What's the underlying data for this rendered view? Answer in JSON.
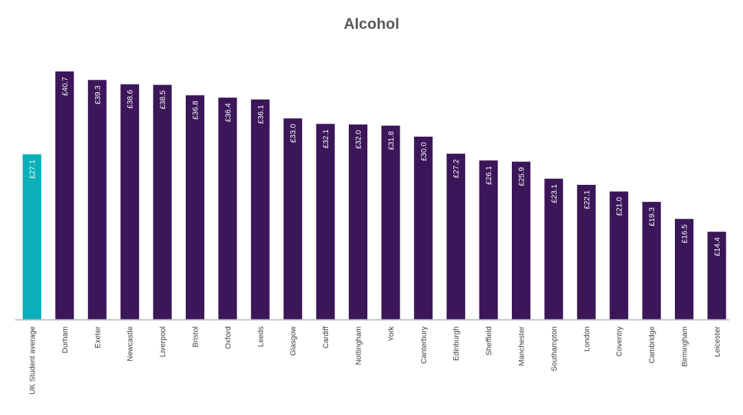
{
  "chart_data": {
    "type": "bar",
    "title": "Alcohol",
    "xlabel": "",
    "ylabel": "",
    "ylim": [
      0,
      45
    ],
    "grid": false,
    "legend": "none",
    "categories": [
      "UK Student average",
      "Durham",
      "Exeter",
      "Newcastle",
      "Liverpool",
      "Bristol",
      "Oxford",
      "Leeds",
      "Glasgow",
      "Cardiff",
      "Nottingham",
      "York",
      "Canterbury",
      "Edinburgh",
      "Sheffield",
      "Manchester",
      "Southampton",
      "London",
      "Coventry",
      "Cambridge",
      "Birmingham",
      "Leicester"
    ],
    "values": [
      27.1,
      40.7,
      39.3,
      38.6,
      38.5,
      36.8,
      36.4,
      36.1,
      33.0,
      32.1,
      32.0,
      31.8,
      30.0,
      27.2,
      26.1,
      25.9,
      23.1,
      22.1,
      21.0,
      19.3,
      16.5,
      14.4
    ],
    "value_labels": [
      "£27.1",
      "£40.7",
      "£39.3",
      "£38.6",
      "£38.5",
      "£36.8",
      "£36.4",
      "£36.1",
      "£33.0",
      "£32.1",
      "£32.0",
      "£31.8",
      "£30.0",
      "£27.2",
      "£26.1",
      "£25.9",
      "£23.1",
      "£22.1",
      "£21.0",
      "£19.3",
      "£16.5",
      "£14.4"
    ],
    "colors": {
      "average": "#0AAFB8",
      "city": "#3B1659",
      "axis": "#BFBFBF"
    }
  }
}
